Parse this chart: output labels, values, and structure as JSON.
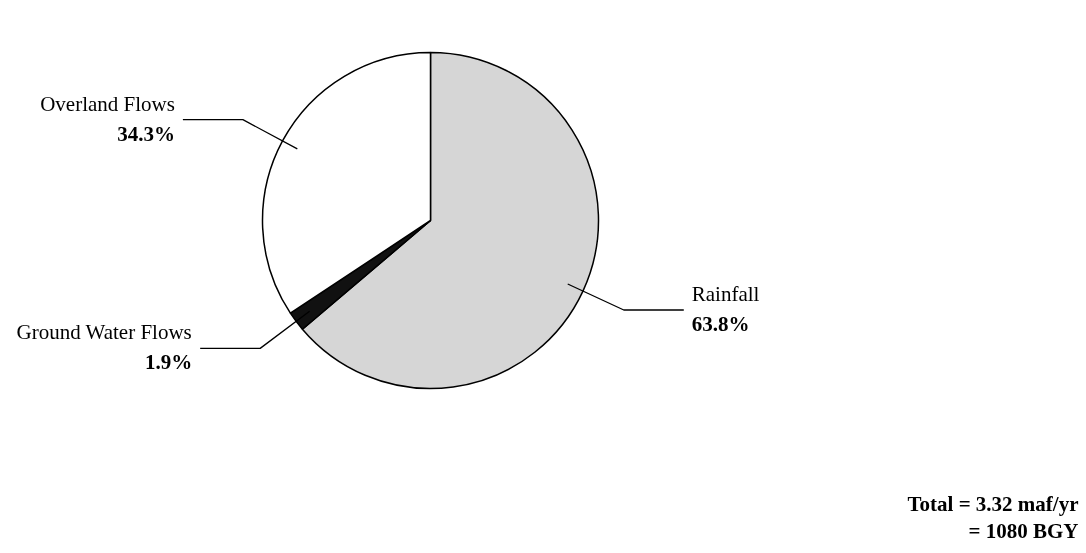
{
  "chart_data": {
    "type": "pie",
    "categories": [
      "Rainfall",
      "Ground Water Flows",
      "Overland Flows"
    ],
    "values": [
      63.8,
      1.9,
      34.3
    ],
    "colors": [
      "#d6d6d6",
      "#111111",
      "#ffffff"
    ],
    "value_labels": [
      "63.8%",
      "1.9%",
      "34.3%"
    ],
    "annotations": [
      "Total = 3.32 maf/yr",
      "= 1080 BGY"
    ]
  }
}
